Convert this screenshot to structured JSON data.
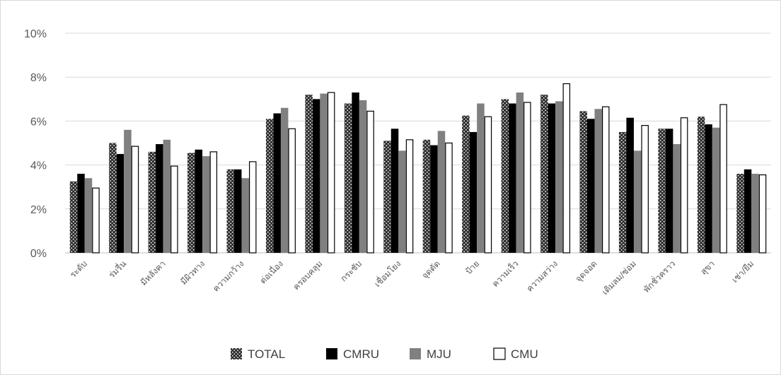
{
  "chart_data": {
    "type": "bar",
    "title": "",
    "xlabel": "",
    "ylabel": "",
    "ylim": [
      0,
      10
    ],
    "y_ticks": [
      "0%",
      "2%",
      "4%",
      "6%",
      "8%",
      "10%"
    ],
    "y_tick_values": [
      0,
      2,
      4,
      6,
      8,
      10
    ],
    "grid": true,
    "legend_position": "bottom",
    "categories": [
      "ระดับ",
      "ร่มรื่น",
      "มีหลังคา",
      "มีผิวทาง",
      "ความกว้าง",
      "ต่อเนื่อง",
      "ครอบคลุม",
      "กระชับ",
      "เชื่อมโยง",
      "จุดตัด",
      "ป้าย",
      "ความเร็ว",
      "ความสว่าง",
      "จุดจอด",
      "เติมลม/ซ่อม",
      "พักชั่วคราว",
      "สุขา",
      "เช่า/ยืม"
    ],
    "series": [
      {
        "name": "TOTAL",
        "color": "#303030",
        "pattern": "dots",
        "values": [
          3.25,
          5.0,
          4.6,
          4.55,
          3.8,
          6.1,
          7.2,
          6.8,
          5.1,
          5.15,
          6.25,
          7.0,
          7.2,
          6.45,
          5.5,
          5.65,
          6.2,
          3.6
        ]
      },
      {
        "name": "CMRU",
        "color": "#000000",
        "pattern": "solid",
        "values": [
          3.6,
          4.5,
          4.95,
          4.7,
          3.8,
          6.35,
          7.0,
          7.3,
          5.65,
          4.9,
          5.5,
          6.8,
          6.8,
          6.1,
          6.15,
          5.65,
          5.85,
          3.8
        ]
      },
      {
        "name": "MJU",
        "color": "#808080",
        "pattern": "solid",
        "values": [
          3.4,
          5.6,
          5.15,
          4.4,
          3.4,
          6.6,
          7.25,
          6.95,
          4.65,
          5.55,
          6.8,
          7.3,
          6.9,
          6.55,
          4.65,
          4.95,
          5.7,
          3.6
        ]
      },
      {
        "name": "CMU",
        "color": "#ffffff",
        "pattern": "outline",
        "values": [
          2.95,
          4.85,
          3.95,
          4.6,
          4.15,
          5.65,
          7.3,
          6.45,
          5.15,
          5.0,
          6.2,
          6.85,
          7.7,
          6.65,
          5.8,
          6.15,
          6.75,
          3.55
        ]
      }
    ]
  }
}
